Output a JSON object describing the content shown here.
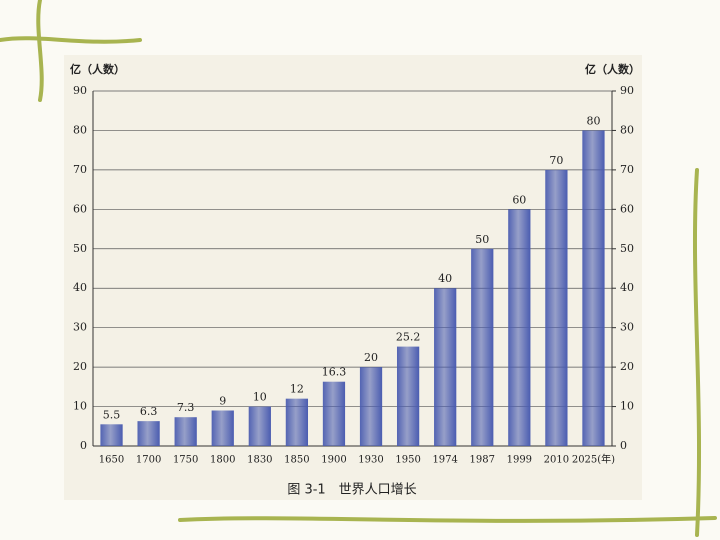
{
  "chart_data": {
    "type": "bar",
    "title": "图 3-1　世界人口增长",
    "y_label": "亿（人数）",
    "y2_label": "亿（人数）",
    "categories": [
      "1650",
      "1700",
      "1750",
      "1800",
      "1830",
      "1850",
      "1900",
      "1930",
      "1950",
      "1974",
      "1987",
      "1999",
      "2010",
      "2025(年)"
    ],
    "values": [
      5.5,
      6.3,
      7.3,
      9,
      10,
      12,
      16.3,
      20,
      25.2,
      40,
      50,
      60,
      70,
      80
    ],
    "color": "#4a5cb0",
    "ylim": [
      0,
      90
    ],
    "yticks": [
      0,
      10,
      20,
      30,
      40,
      50,
      60,
      70,
      80,
      90
    ],
    "y2lim": [
      0,
      90
    ],
    "y2ticks": [
      0,
      10,
      20,
      30,
      40,
      50,
      60,
      70,
      80,
      90
    ],
    "grid": true
  }
}
